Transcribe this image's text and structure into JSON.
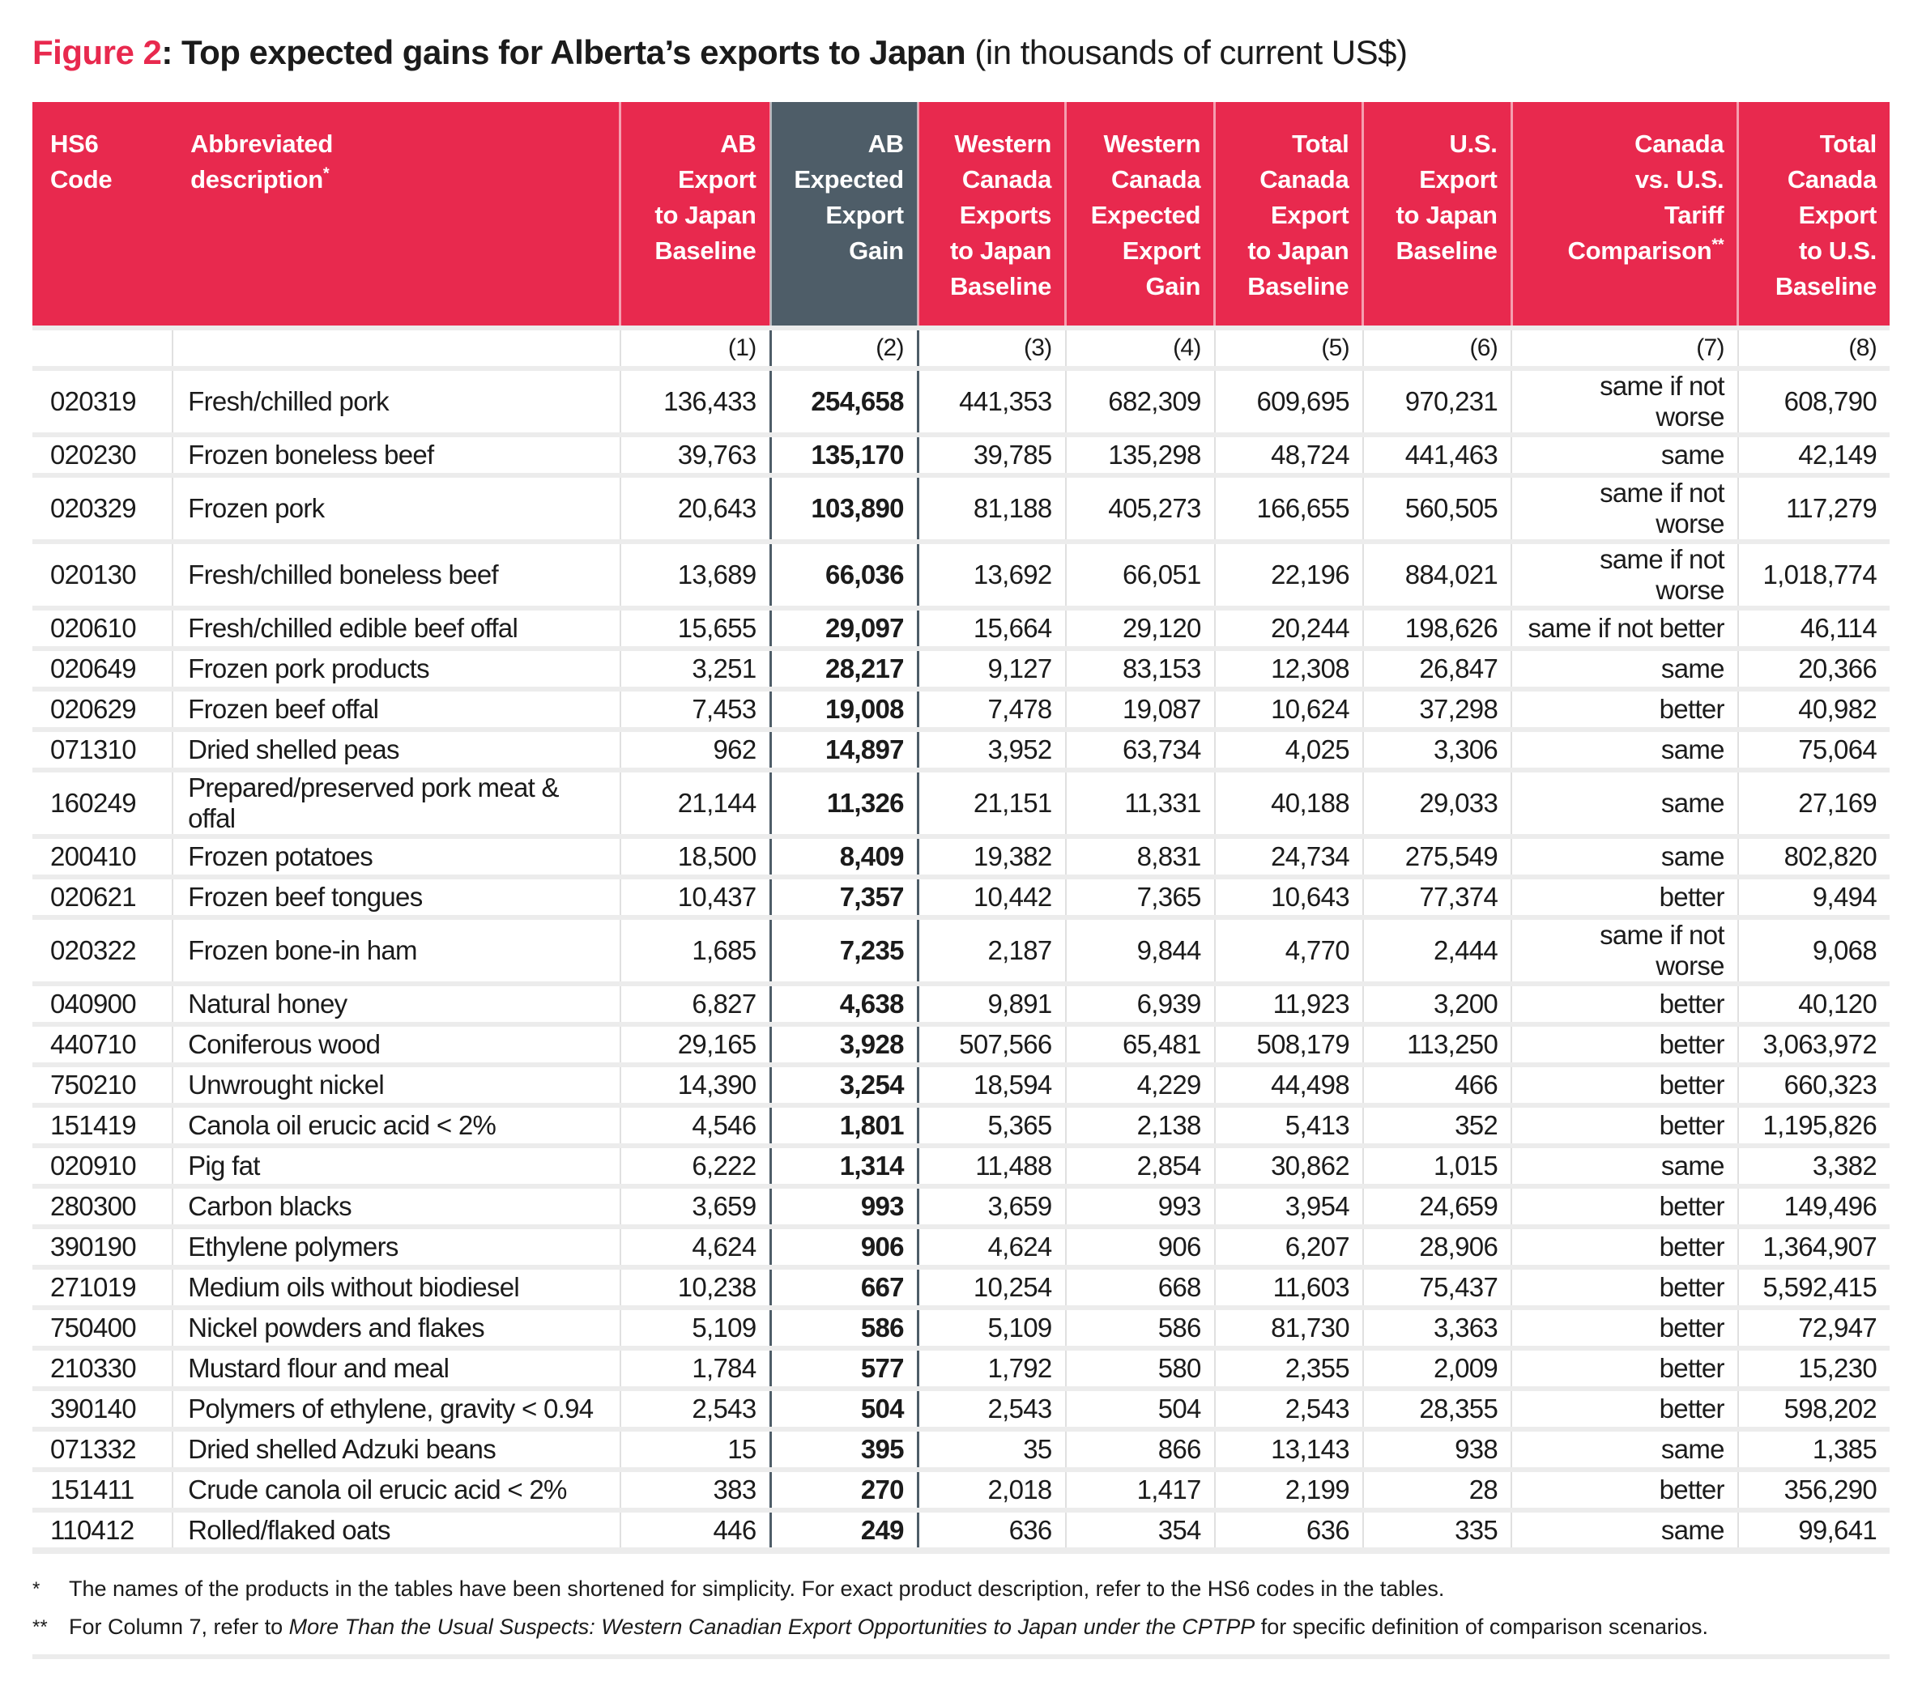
{
  "title": {
    "figure_label": "Figure 2",
    "colon": ": ",
    "main": "Top expected gains for Alberta’s exports to Japan",
    "suffix": " (in thousands of current US$)"
  },
  "colors": {
    "header_red": "#E8294E",
    "dark_column": "#4E5D68",
    "row_divider": "#ECECEC"
  },
  "table": {
    "columns": [
      {
        "key": "hs6_code",
        "label": "HS6\nCode",
        "sup": "",
        "align": "left",
        "variant": "red",
        "num": ""
      },
      {
        "key": "description",
        "label": "Abbreviated\ndescription",
        "sup": "*",
        "align": "left",
        "variant": "red",
        "num": ""
      },
      {
        "key": "ab_export_japan_baseline",
        "label": "AB\nExport\nto Japan\nBaseline",
        "sup": "",
        "align": "right",
        "variant": "red",
        "num": "(1)"
      },
      {
        "key": "ab_expected_export_gain",
        "label": "AB\nExpected\nExport\nGain",
        "sup": "",
        "align": "right",
        "variant": "dark",
        "num": "(2)"
      },
      {
        "key": "wc_exports_japan_baseline",
        "label": "Western\nCanada\nExports\nto Japan\nBaseline",
        "sup": "",
        "align": "right",
        "variant": "red",
        "num": "(3)"
      },
      {
        "key": "wc_expected_export_gain",
        "label": "Western\nCanada\nExpected\nExport\nGain",
        "sup": "",
        "align": "right",
        "variant": "red",
        "num": "(4)"
      },
      {
        "key": "total_canada_export_japan_baseline",
        "label": "Total\nCanada\nExport\nto Japan\nBaseline",
        "sup": "",
        "align": "right",
        "variant": "red",
        "num": "(5)"
      },
      {
        "key": "us_export_japan_baseline",
        "label": "U.S.\nExport\nto Japan\nBaseline",
        "sup": "",
        "align": "right",
        "variant": "red",
        "num": "(6)"
      },
      {
        "key": "canada_vs_us_tariff_comparison",
        "label": "Canada\nvs. U.S.\nTariff\nComparison",
        "sup": "**",
        "align": "right",
        "variant": "red",
        "num": "(7)"
      },
      {
        "key": "total_canada_export_us_baseline",
        "label": "Total\nCanada\nExport\nto U.S.\nBaseline",
        "sup": "",
        "align": "right",
        "variant": "red",
        "num": "(8)"
      }
    ],
    "rows": [
      [
        "020319",
        "Fresh/chilled pork",
        "136,433",
        "254,658",
        "441,353",
        "682,309",
        "609,695",
        "970,231",
        "same if not worse",
        "608,790"
      ],
      [
        "020230",
        "Frozen boneless beef",
        "39,763",
        "135,170",
        "39,785",
        "135,298",
        "48,724",
        "441,463",
        "same",
        "42,149"
      ],
      [
        "020329",
        "Frozen pork",
        "20,643",
        "103,890",
        "81,188",
        "405,273",
        "166,655",
        "560,505",
        "same if not worse",
        "117,279"
      ],
      [
        "020130",
        "Fresh/chilled boneless beef",
        "13,689",
        "66,036",
        "13,692",
        "66,051",
        "22,196",
        "884,021",
        "same if not worse",
        "1,018,774"
      ],
      [
        "020610",
        "Fresh/chilled edible beef offal",
        "15,655",
        "29,097",
        "15,664",
        "29,120",
        "20,244",
        "198,626",
        "same if not better",
        "46,114"
      ],
      [
        "020649",
        "Frozen pork products",
        "3,251",
        "28,217",
        "9,127",
        "83,153",
        "12,308",
        "26,847",
        "same",
        "20,366"
      ],
      [
        "020629",
        "Frozen beef offal",
        "7,453",
        "19,008",
        "7,478",
        "19,087",
        "10,624",
        "37,298",
        "better",
        "40,982"
      ],
      [
        "071310",
        "Dried shelled peas",
        "962",
        "14,897",
        "3,952",
        "63,734",
        "4,025",
        "3,306",
        "same",
        "75,064"
      ],
      [
        "160249",
        "Prepared/preserved pork meat & offal",
        "21,144",
        "11,326",
        "21,151",
        "11,331",
        "40,188",
        "29,033",
        "same",
        "27,169"
      ],
      [
        "200410",
        "Frozen potatoes",
        "18,500",
        "8,409",
        "19,382",
        "8,831",
        "24,734",
        "275,549",
        "same",
        "802,820"
      ],
      [
        "020621",
        "Frozen beef tongues",
        "10,437",
        "7,357",
        "10,442",
        "7,365",
        "10,643",
        "77,374",
        "better",
        "9,494"
      ],
      [
        "020322",
        "Frozen bone-in ham",
        "1,685",
        "7,235",
        "2,187",
        "9,844",
        "4,770",
        "2,444",
        "same if not worse",
        "9,068"
      ],
      [
        "040900",
        "Natural honey",
        "6,827",
        "4,638",
        "9,891",
        "6,939",
        "11,923",
        "3,200",
        "better",
        "40,120"
      ],
      [
        "440710",
        "Coniferous wood",
        "29,165",
        "3,928",
        "507,566",
        "65,481",
        "508,179",
        "113,250",
        "better",
        "3,063,972"
      ],
      [
        "750210",
        "Unwrought nickel",
        "14,390",
        "3,254",
        "18,594",
        "4,229",
        "44,498",
        "466",
        "better",
        "660,323"
      ],
      [
        "151419",
        "Canola oil erucic acid < 2%",
        "4,546",
        "1,801",
        "5,365",
        "2,138",
        "5,413",
        "352",
        "better",
        "1,195,826"
      ],
      [
        "020910",
        "Pig fat",
        "6,222",
        "1,314",
        "11,488",
        "2,854",
        "30,862",
        "1,015",
        "same",
        "3,382"
      ],
      [
        "280300",
        "Carbon blacks",
        "3,659",
        "993",
        "3,659",
        "993",
        "3,954",
        "24,659",
        "better",
        "149,496"
      ],
      [
        "390190",
        "Ethylene polymers",
        "4,624",
        "906",
        "4,624",
        "906",
        "6,207",
        "28,906",
        "better",
        "1,364,907"
      ],
      [
        "271019",
        "Medium oils without biodiesel",
        "10,238",
        "667",
        "10,254",
        "668",
        "11,603",
        "75,437",
        "better",
        "5,592,415"
      ],
      [
        "750400",
        "Nickel powders and flakes",
        "5,109",
        "586",
        "5,109",
        "586",
        "81,730",
        "3,363",
        "better",
        "72,947"
      ],
      [
        "210330",
        "Mustard flour and meal",
        "1,784",
        "577",
        "1,792",
        "580",
        "2,355",
        "2,009",
        "better",
        "15,230"
      ],
      [
        "390140",
        "Polymers of ethylene, gravity < 0.94",
        "2,543",
        "504",
        "2,543",
        "504",
        "2,543",
        "28,355",
        "better",
        "598,202"
      ],
      [
        "071332",
        "Dried shelled Adzuki beans",
        "15",
        "395",
        "35",
        "866",
        "13,143",
        "938",
        "same",
        "1,385"
      ],
      [
        "151411",
        "Crude canola oil erucic acid < 2%",
        "383",
        "270",
        "2,018",
        "1,417",
        "2,199",
        "28",
        "better",
        "356,290"
      ],
      [
        "110412",
        "Rolled/flaked oats",
        "446",
        "249",
        "636",
        "354",
        "636",
        "335",
        "same",
        "99,641"
      ]
    ]
  },
  "footnotes": [
    {
      "marker": "*",
      "prefix": "The names of the products in the tables have been shortened for simplicity. For exact product description, refer to the HS6 codes in the tables.",
      "italic": "",
      "suffix": ""
    },
    {
      "marker": "**",
      "prefix": "For Column 7, refer to ",
      "italic": "More Than the Usual Suspects: Western Canadian Export Opportunities to Japan under the CPTPP",
      "suffix": " for specific definition of comparison scenarios."
    }
  ]
}
